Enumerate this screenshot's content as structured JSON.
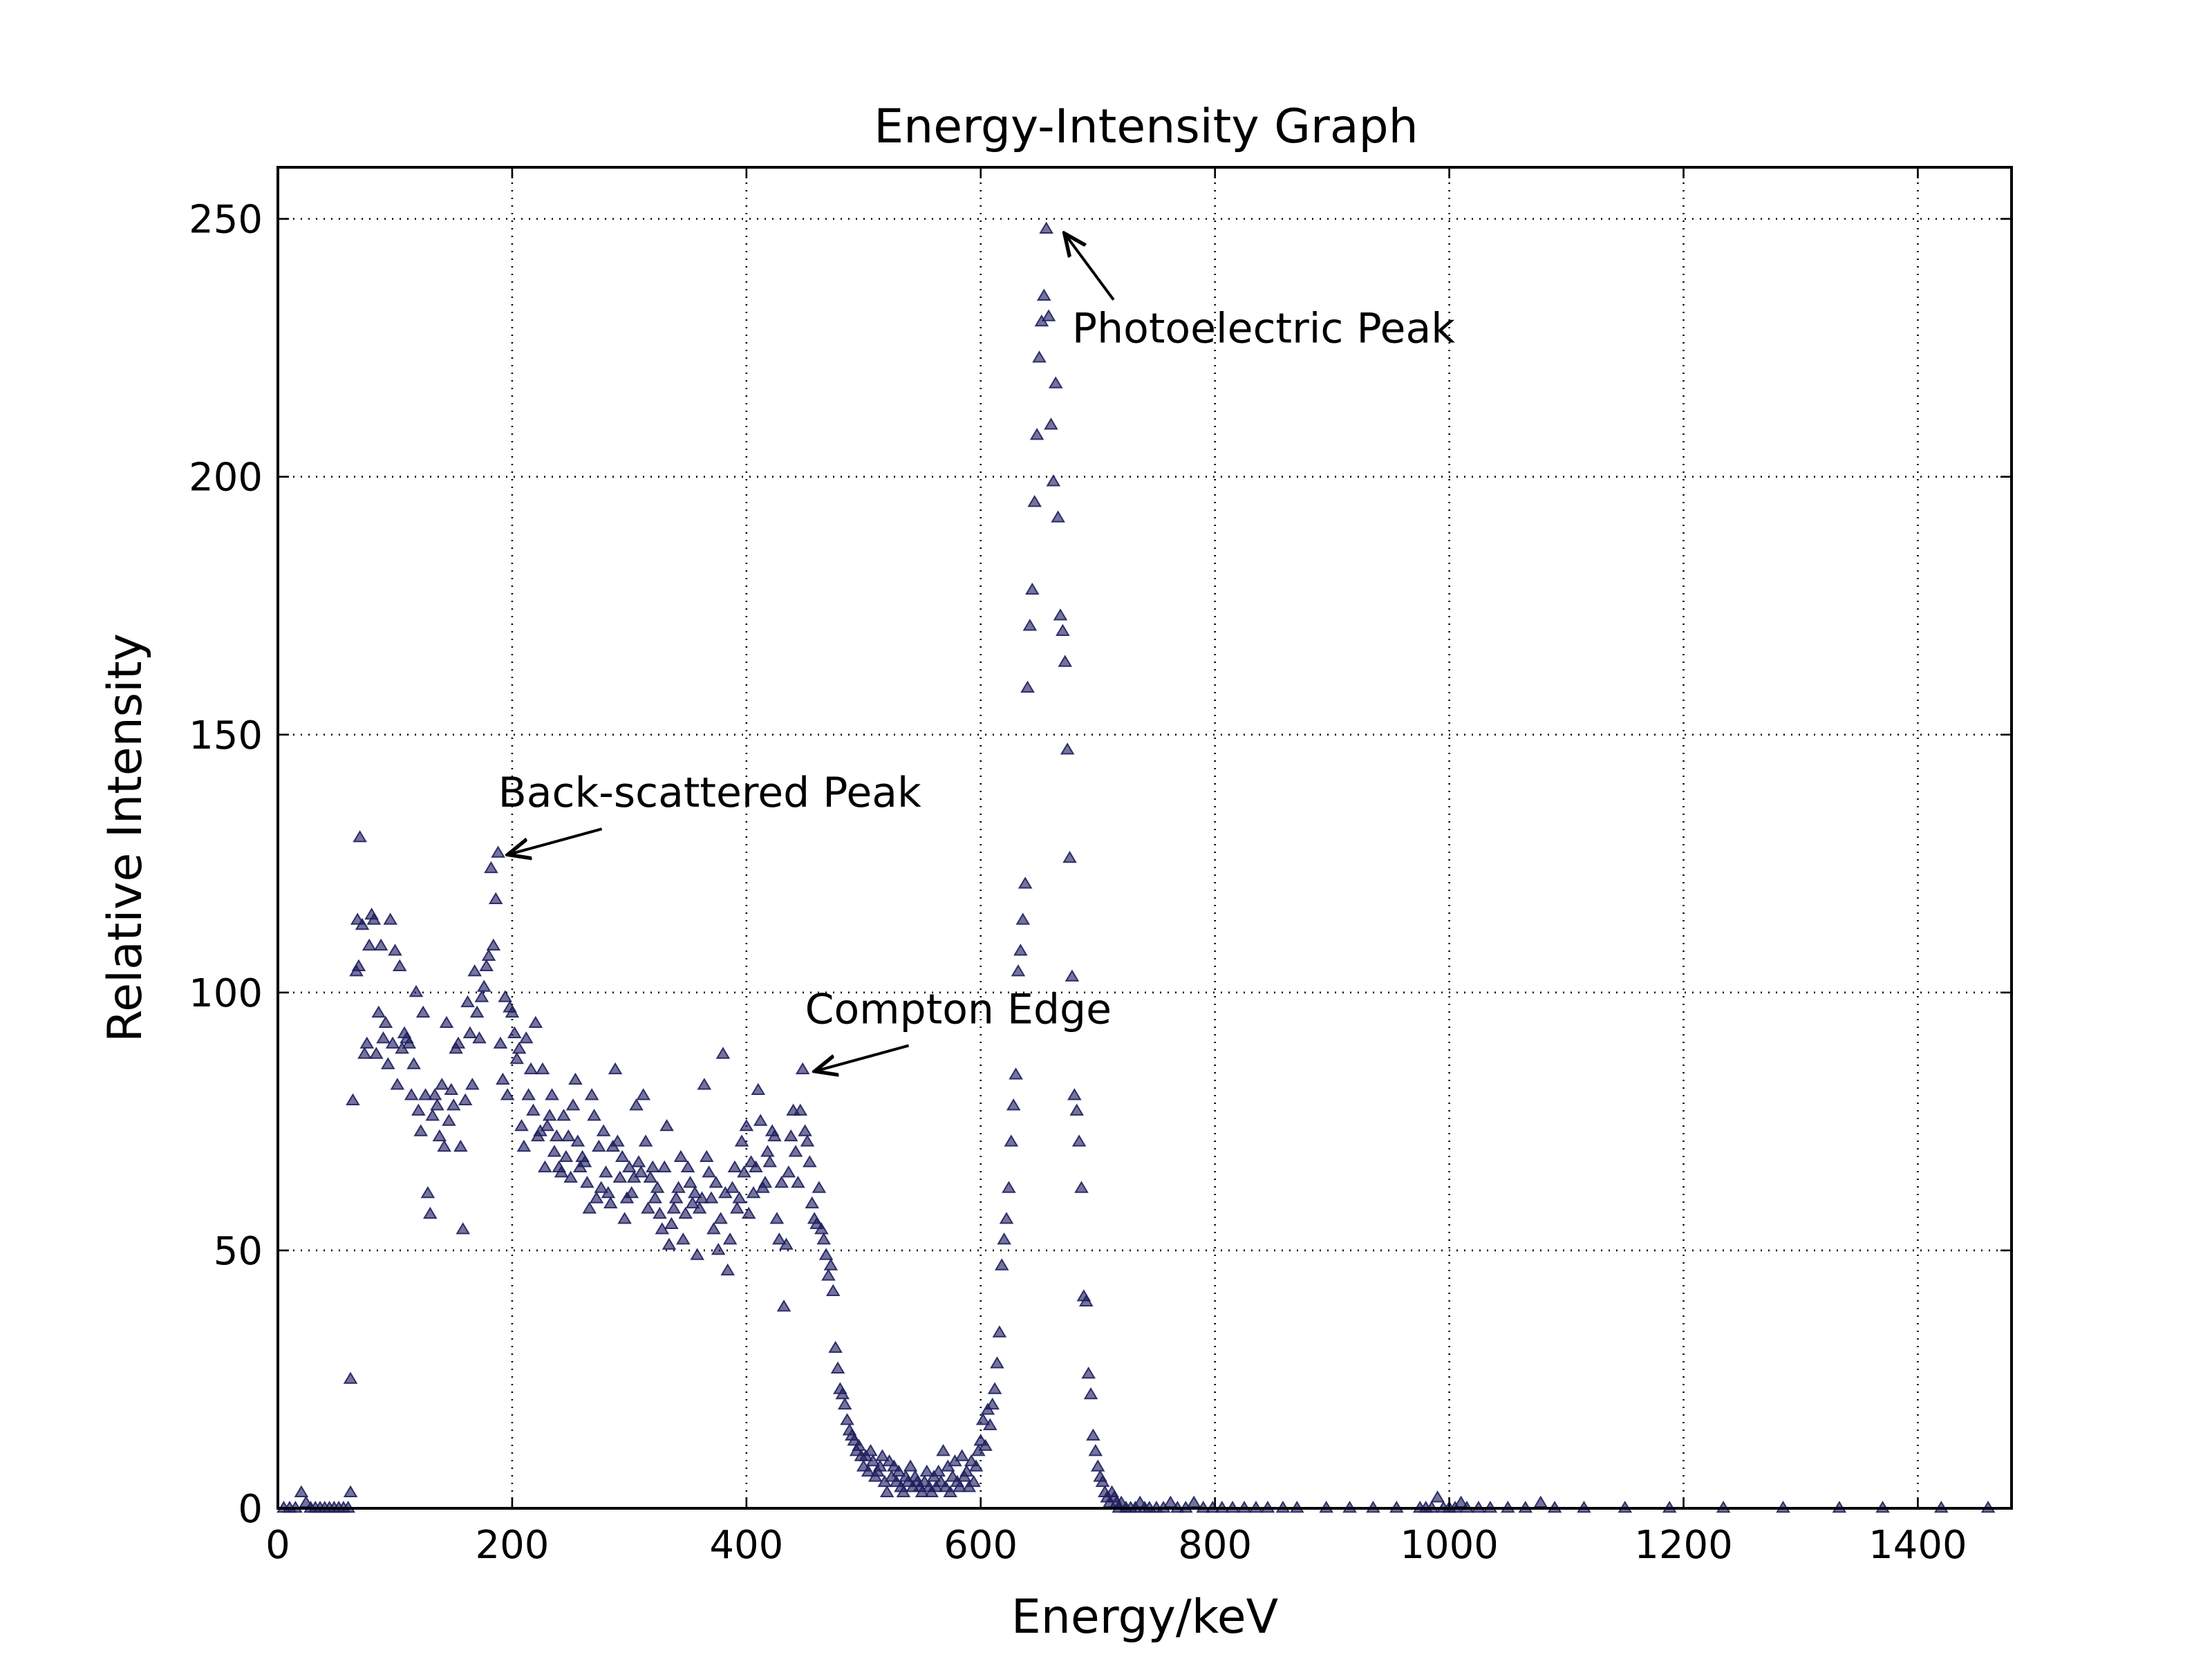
{
  "chart_data": {
    "type": "scatter",
    "title": "Energy-Intensity Graph",
    "xlabel": "Energy/keV",
    "ylabel": "Relative Intensity",
    "xlim": [
      0,
      1480
    ],
    "ylim": [
      0,
      260
    ],
    "xticks": [
      0,
      200,
      400,
      600,
      800,
      1000,
      1200,
      1400
    ],
    "yticks": [
      0,
      50,
      100,
      150,
      200,
      250
    ],
    "grid": true,
    "marker": "triangle",
    "marker_color": "#1f1f5f",
    "points": [
      [
        5,
        0
      ],
      [
        10,
        0
      ],
      [
        15,
        0
      ],
      [
        20,
        3
      ],
      [
        24,
        1
      ],
      [
        28,
        0
      ],
      [
        32,
        0
      ],
      [
        36,
        0
      ],
      [
        40,
        0
      ],
      [
        44,
        0
      ],
      [
        48,
        0
      ],
      [
        52,
        0
      ],
      [
        56,
        0
      ],
      [
        60,
        0
      ],
      [
        62,
        3
      ],
      [
        62,
        25
      ],
      [
        64,
        79
      ],
      [
        67,
        104
      ],
      [
        68,
        114
      ],
      [
        69,
        105
      ],
      [
        70,
        130
      ],
      [
        72,
        113
      ],
      [
        74,
        88
      ],
      [
        76,
        90
      ],
      [
        78,
        109
      ],
      [
        80,
        115
      ],
      [
        82,
        114
      ],
      [
        84,
        88
      ],
      [
        86,
        96
      ],
      [
        88,
        109
      ],
      [
        90,
        91
      ],
      [
        92,
        94
      ],
      [
        94,
        86
      ],
      [
        96,
        114
      ],
      [
        98,
        90
      ],
      [
        100,
        108
      ],
      [
        102,
        82
      ],
      [
        104,
        105
      ],
      [
        106,
        89
      ],
      [
        108,
        92
      ],
      [
        110,
        91
      ],
      [
        112,
        90
      ],
      [
        114,
        80
      ],
      [
        116,
        86
      ],
      [
        118,
        100
      ],
      [
        120,
        77
      ],
      [
        122,
        73
      ],
      [
        124,
        96
      ],
      [
        126,
        80
      ],
      [
        128,
        61
      ],
      [
        130,
        57
      ],
      [
        132,
        76
      ],
      [
        134,
        80
      ],
      [
        136,
        78
      ],
      [
        138,
        72
      ],
      [
        140,
        82
      ],
      [
        142,
        70
      ],
      [
        144,
        94
      ],
      [
        146,
        75
      ],
      [
        148,
        81
      ],
      [
        150,
        78
      ],
      [
        152,
        89
      ],
      [
        154,
        90
      ],
      [
        156,
        70
      ],
      [
        158,
        54
      ],
      [
        160,
        79
      ],
      [
        162,
        98
      ],
      [
        164,
        92
      ],
      [
        166,
        82
      ],
      [
        168,
        104
      ],
      [
        170,
        96
      ],
      [
        172,
        91
      ],
      [
        174,
        99
      ],
      [
        176,
        101
      ],
      [
        178,
        105
      ],
      [
        180,
        107
      ],
      [
        182,
        124
      ],
      [
        184,
        109
      ],
      [
        186,
        118
      ],
      [
        188,
        127
      ],
      [
        190,
        90
      ],
      [
        192,
        83
      ],
      [
        194,
        99
      ],
      [
        196,
        80
      ],
      [
        198,
        97
      ],
      [
        200,
        96
      ],
      [
        202,
        92
      ],
      [
        204,
        87
      ],
      [
        206,
        89
      ],
      [
        208,
        74
      ],
      [
        210,
        70
      ],
      [
        212,
        91
      ],
      [
        214,
        80
      ],
      [
        216,
        85
      ],
      [
        218,
        77
      ],
      [
        220,
        94
      ],
      [
        222,
        72
      ],
      [
        224,
        73
      ],
      [
        226,
        85
      ],
      [
        228,
        66
      ],
      [
        230,
        74
      ],
      [
        232,
        76
      ],
      [
        234,
        80
      ],
      [
        236,
        69
      ],
      [
        238,
        72
      ],
      [
        240,
        66
      ],
      [
        242,
        65
      ],
      [
        244,
        76
      ],
      [
        246,
        68
      ],
      [
        248,
        72
      ],
      [
        250,
        64
      ],
      [
        252,
        78
      ],
      [
        254,
        83
      ],
      [
        256,
        71
      ],
      [
        258,
        66
      ],
      [
        260,
        68
      ],
      [
        262,
        67
      ],
      [
        264,
        63
      ],
      [
        266,
        58
      ],
      [
        268,
        80
      ],
      [
        270,
        76
      ],
      [
        272,
        60
      ],
      [
        274,
        70
      ],
      [
        276,
        62
      ],
      [
        278,
        73
      ],
      [
        280,
        65
      ],
      [
        282,
        61
      ],
      [
        284,
        59
      ],
      [
        286,
        70
      ],
      [
        288,
        85
      ],
      [
        290,
        71
      ],
      [
        292,
        64
      ],
      [
        294,
        68
      ],
      [
        296,
        56
      ],
      [
        298,
        60
      ],
      [
        300,
        66
      ],
      [
        302,
        61
      ],
      [
        304,
        64
      ],
      [
        306,
        78
      ],
      [
        308,
        67
      ],
      [
        310,
        65
      ],
      [
        312,
        80
      ],
      [
        314,
        71
      ],
      [
        316,
        58
      ],
      [
        318,
        64
      ],
      [
        320,
        66
      ],
      [
        322,
        60
      ],
      [
        324,
        62
      ],
      [
        326,
        57
      ],
      [
        328,
        54
      ],
      [
        330,
        66
      ],
      [
        332,
        74
      ],
      [
        334,
        51
      ],
      [
        336,
        55
      ],
      [
        338,
        58
      ],
      [
        340,
        60
      ],
      [
        342,
        62
      ],
      [
        344,
        68
      ],
      [
        346,
        52
      ],
      [
        348,
        57
      ],
      [
        350,
        66
      ],
      [
        352,
        63
      ],
      [
        354,
        59
      ],
      [
        356,
        61
      ],
      [
        358,
        49
      ],
      [
        360,
        58
      ],
      [
        362,
        60
      ],
      [
        364,
        82
      ],
      [
        366,
        68
      ],
      [
        368,
        65
      ],
      [
        370,
        60
      ],
      [
        372,
        54
      ],
      [
        374,
        63
      ],
      [
        376,
        50
      ],
      [
        378,
        56
      ],
      [
        380,
        88
      ],
      [
        382,
        61
      ],
      [
        384,
        46
      ],
      [
        386,
        52
      ],
      [
        388,
        62
      ],
      [
        390,
        66
      ],
      [
        392,
        58
      ],
      [
        394,
        60
      ],
      [
        396,
        71
      ],
      [
        398,
        65
      ],
      [
        400,
        74
      ],
      [
        402,
        57
      ],
      [
        404,
        67
      ],
      [
        406,
        61
      ],
      [
        408,
        66
      ],
      [
        410,
        81
      ],
      [
        412,
        75
      ],
      [
        414,
        62
      ],
      [
        416,
        63
      ],
      [
        418,
        69
      ],
      [
        420,
        67
      ],
      [
        422,
        73
      ],
      [
        424,
        72
      ],
      [
        426,
        56
      ],
      [
        428,
        52
      ],
      [
        430,
        63
      ],
      [
        432,
        39
      ],
      [
        434,
        51
      ],
      [
        436,
        65
      ],
      [
        438,
        72
      ],
      [
        440,
        77
      ],
      [
        442,
        69
      ],
      [
        444,
        63
      ],
      [
        446,
        77
      ],
      [
        448,
        85
      ],
      [
        450,
        73
      ],
      [
        452,
        71
      ],
      [
        454,
        67
      ],
      [
        456,
        59
      ],
      [
        458,
        56
      ],
      [
        460,
        55
      ],
      [
        462,
        62
      ],
      [
        464,
        54
      ],
      [
        466,
        52
      ],
      [
        468,
        49
      ],
      [
        470,
        45
      ],
      [
        472,
        47
      ],
      [
        474,
        42
      ],
      [
        476,
        31
      ],
      [
        478,
        27
      ],
      [
        480,
        23
      ],
      [
        482,
        22
      ],
      [
        484,
        20
      ],
      [
        486,
        17
      ],
      [
        488,
        15
      ],
      [
        490,
        14
      ],
      [
        492,
        13
      ],
      [
        494,
        11
      ],
      [
        496,
        12
      ],
      [
        498,
        10
      ],
      [
        500,
        8
      ],
      [
        502,
        10
      ],
      [
        504,
        7
      ],
      [
        506,
        11
      ],
      [
        508,
        9
      ],
      [
        510,
        6
      ],
      [
        512,
        7
      ],
      [
        514,
        8
      ],
      [
        516,
        10
      ],
      [
        518,
        5
      ],
      [
        520,
        3
      ],
      [
        522,
        9
      ],
      [
        524,
        6
      ],
      [
        526,
        8
      ],
      [
        528,
        5
      ],
      [
        530,
        7
      ],
      [
        532,
        4
      ],
      [
        534,
        3
      ],
      [
        536,
        6
      ],
      [
        538,
        5
      ],
      [
        540,
        8
      ],
      [
        542,
        4
      ],
      [
        544,
        6
      ],
      [
        546,
        5
      ],
      [
        548,
        4
      ],
      [
        550,
        3
      ],
      [
        552,
        5
      ],
      [
        554,
        7
      ],
      [
        556,
        4
      ],
      [
        558,
        3
      ],
      [
        560,
        6
      ],
      [
        562,
        4
      ],
      [
        564,
        7
      ],
      [
        566,
        5
      ],
      [
        568,
        11
      ],
      [
        570,
        4
      ],
      [
        572,
        8
      ],
      [
        574,
        3
      ],
      [
        576,
        6
      ],
      [
        578,
        9
      ],
      [
        580,
        5
      ],
      [
        582,
        4
      ],
      [
        584,
        10
      ],
      [
        586,
        6
      ],
      [
        588,
        7
      ],
      [
        590,
        4
      ],
      [
        592,
        9
      ],
      [
        594,
        5
      ],
      [
        596,
        8
      ],
      [
        598,
        11
      ],
      [
        600,
        13
      ],
      [
        602,
        17
      ],
      [
        604,
        12
      ],
      [
        606,
        19
      ],
      [
        608,
        16
      ],
      [
        610,
        20
      ],
      [
        612,
        23
      ],
      [
        614,
        28
      ],
      [
        616,
        34
      ],
      [
        618,
        47
      ],
      [
        620,
        52
      ],
      [
        622,
        56
      ],
      [
        624,
        62
      ],
      [
        626,
        71
      ],
      [
        628,
        78
      ],
      [
        630,
        84
      ],
      [
        632,
        104
      ],
      [
        634,
        108
      ],
      [
        636,
        114
      ],
      [
        638,
        121
      ],
      [
        640,
        159
      ],
      [
        642,
        171
      ],
      [
        644,
        178
      ],
      [
        646,
        195
      ],
      [
        648,
        208
      ],
      [
        650,
        223
      ],
      [
        652,
        230
      ],
      [
        654,
        235
      ],
      [
        656,
        248
      ],
      [
        658,
        231
      ],
      [
        660,
        210
      ],
      [
        662,
        199
      ],
      [
        664,
        218
      ],
      [
        666,
        192
      ],
      [
        668,
        173
      ],
      [
        670,
        170
      ],
      [
        672,
        164
      ],
      [
        674,
        147
      ],
      [
        676,
        126
      ],
      [
        678,
        103
      ],
      [
        680,
        80
      ],
      [
        682,
        77
      ],
      [
        684,
        71
      ],
      [
        686,
        62
      ],
      [
        688,
        41
      ],
      [
        690,
        40
      ],
      [
        692,
        26
      ],
      [
        694,
        22
      ],
      [
        696,
        14
      ],
      [
        698,
        11
      ],
      [
        700,
        8
      ],
      [
        702,
        6
      ],
      [
        704,
        5
      ],
      [
        706,
        3
      ],
      [
        708,
        2
      ],
      [
        710,
        1
      ],
      [
        712,
        3
      ],
      [
        714,
        2
      ],
      [
        716,
        1
      ],
      [
        718,
        0
      ],
      [
        720,
        1
      ],
      [
        724,
        0
      ],
      [
        728,
        0
      ],
      [
        732,
        0
      ],
      [
        736,
        1
      ],
      [
        740,
        0
      ],
      [
        744,
        0
      ],
      [
        750,
        0
      ],
      [
        756,
        0
      ],
      [
        762,
        1
      ],
      [
        768,
        0
      ],
      [
        775,
        0
      ],
      [
        782,
        1
      ],
      [
        790,
        0
      ],
      [
        798,
        0
      ],
      [
        806,
        0
      ],
      [
        815,
        0
      ],
      [
        825,
        0
      ],
      [
        835,
        0
      ],
      [
        845,
        0
      ],
      [
        858,
        0
      ],
      [
        870,
        0
      ],
      [
        895,
        0
      ],
      [
        915,
        0
      ],
      [
        935,
        0
      ],
      [
        955,
        0
      ],
      [
        975,
        0
      ],
      [
        980,
        0
      ],
      [
        985,
        0
      ],
      [
        990,
        2
      ],
      [
        995,
        0
      ],
      [
        1000,
        0
      ],
      [
        1005,
        0
      ],
      [
        1010,
        1
      ],
      [
        1015,
        0
      ],
      [
        1025,
        0
      ],
      [
        1035,
        0
      ],
      [
        1050,
        0
      ],
      [
        1065,
        0
      ],
      [
        1078,
        1
      ],
      [
        1090,
        0
      ],
      [
        1115,
        0
      ],
      [
        1150,
        0
      ],
      [
        1188,
        0
      ],
      [
        1234,
        0
      ],
      [
        1285,
        0
      ],
      [
        1333,
        0
      ],
      [
        1370,
        0
      ],
      [
        1420,
        0
      ],
      [
        1460,
        0
      ]
    ],
    "annotations": [
      {
        "text": "Photoelectric Peak",
        "point": [
          662,
          248
        ],
        "text_at": [
          678,
          226
        ]
      },
      {
        "text": "Back-scattered Peak",
        "point": [
          188,
          127
        ],
        "text_at": [
          188,
          136
        ]
      },
      {
        "text": "Compton Edge",
        "point": [
          450,
          85
        ],
        "text_at": [
          450,
          94
        ]
      }
    ]
  }
}
